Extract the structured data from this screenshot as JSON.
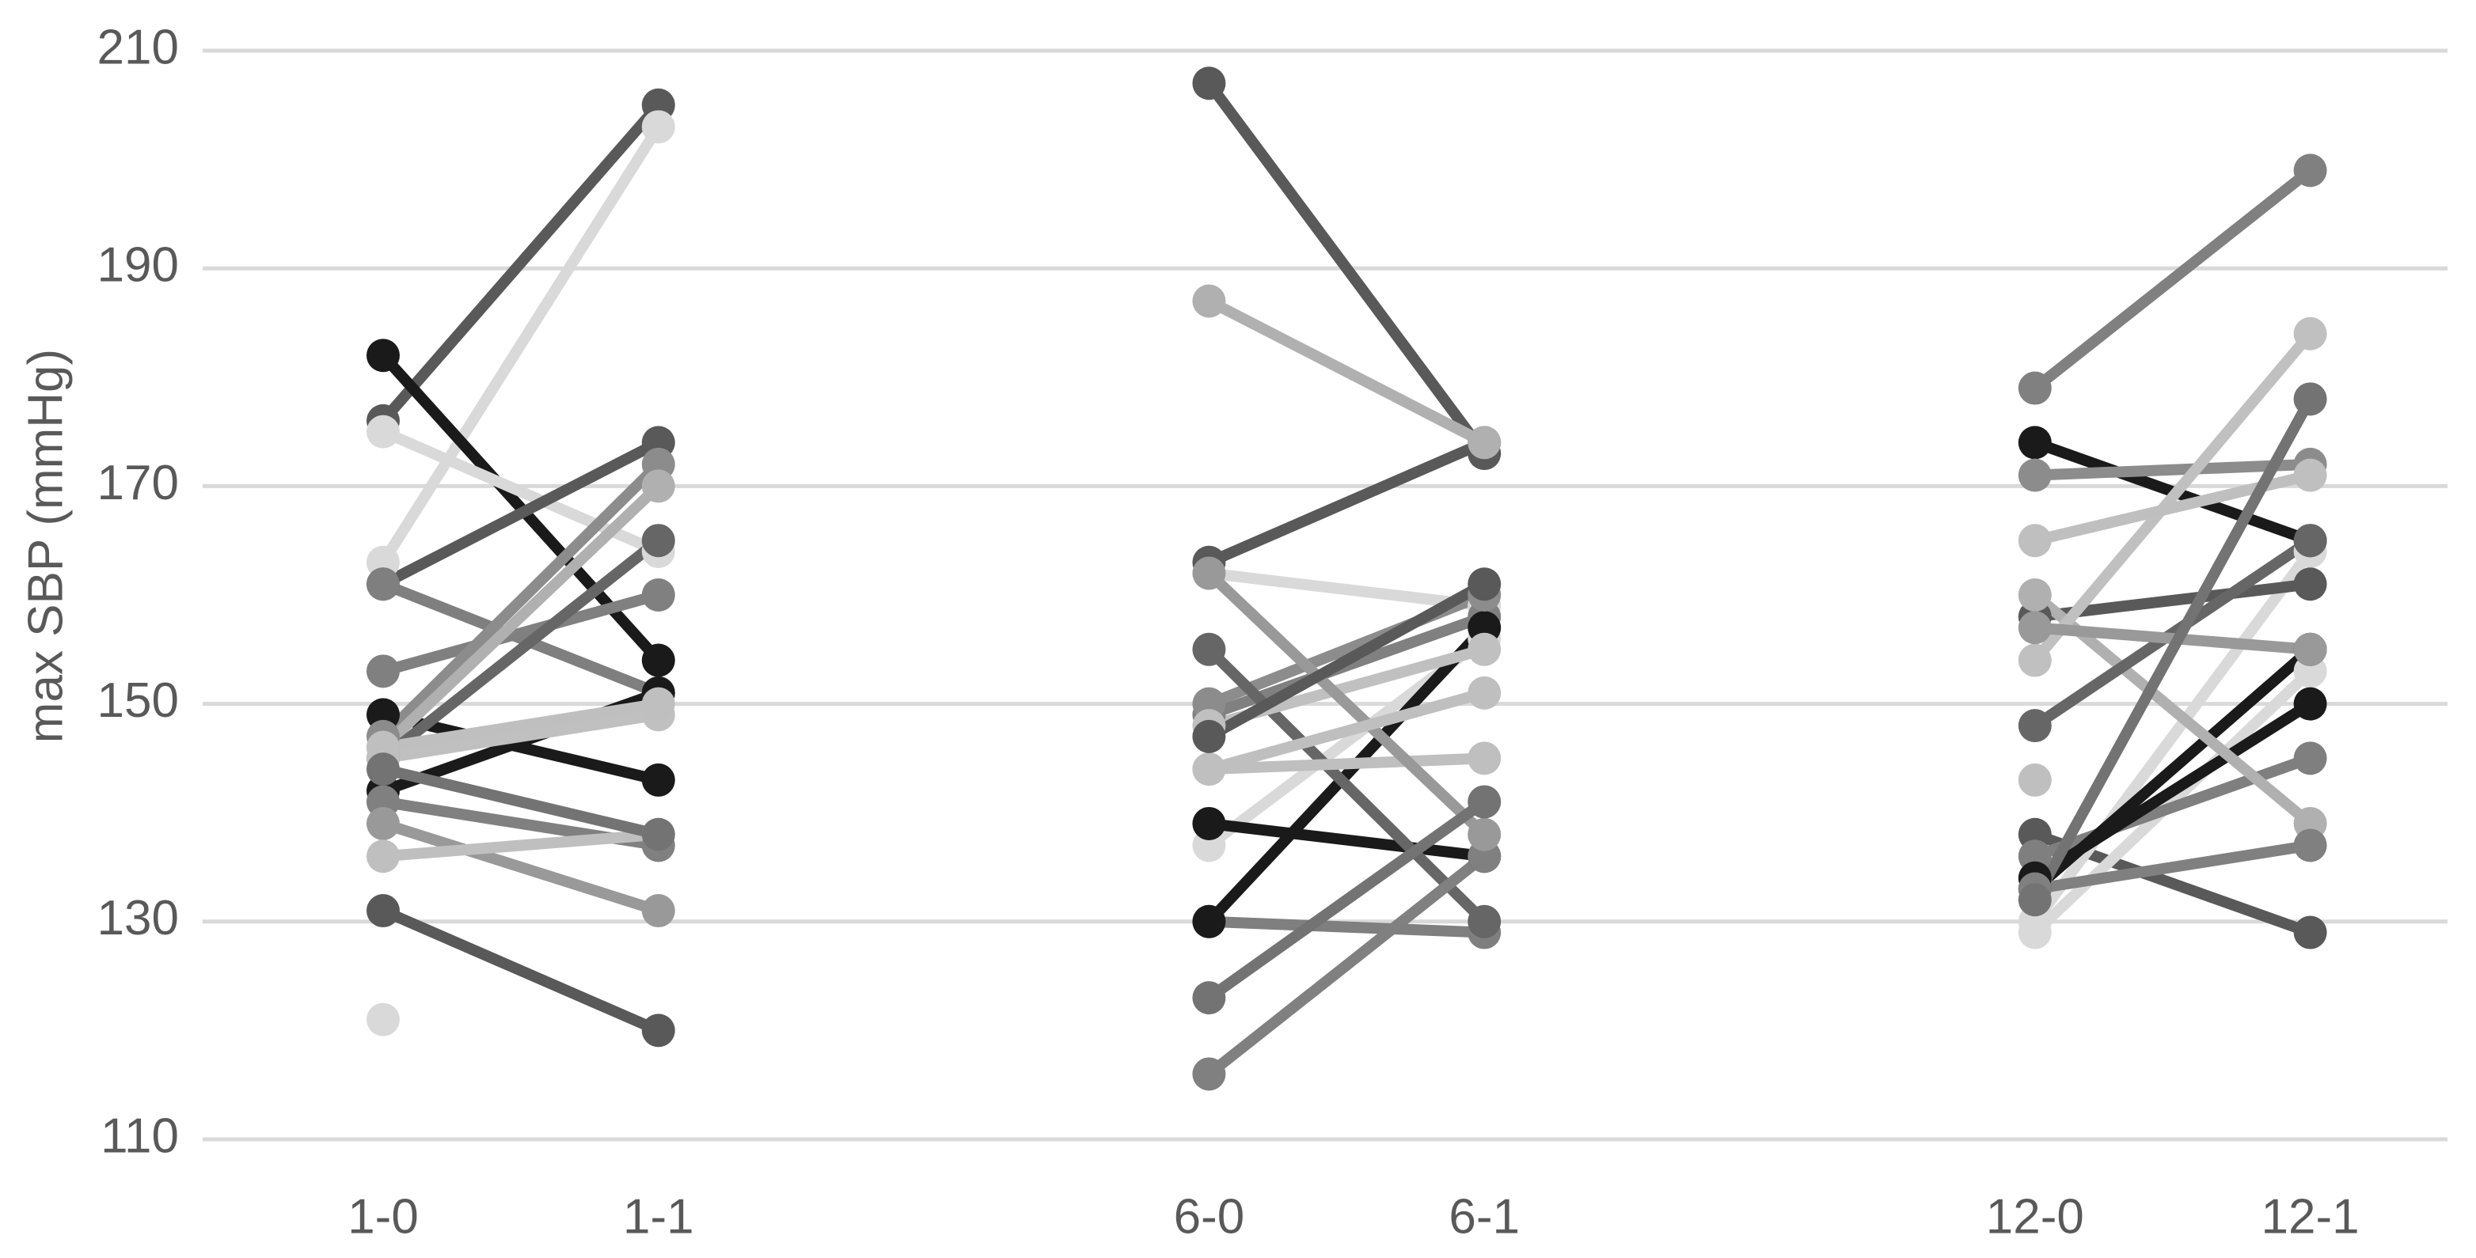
{
  "chart_data": {
    "type": "line",
    "y_label": "max SBP (mmHg)",
    "categories": [
      "1-0",
      "1-1",
      null,
      "6-0",
      "6-1",
      null,
      "12-0",
      "12-1"
    ],
    "ylim": [
      110,
      210
    ],
    "yticks": [
      110,
      130,
      150,
      170,
      190,
      210
    ],
    "grid": true,
    "series": [
      {
        "color": "#595959",
        "values": [
          176,
          205,
          null,
          207,
          173,
          null,
          138,
          129
        ]
      },
      {
        "color": "#d9d9d9",
        "values": [
          163,
          203,
          null,
          137,
          156,
          null,
          130,
          164
        ]
      },
      {
        "color": "#1a1a1a",
        "values": [
          182,
          154,
          null,
          139,
          136,
          null,
          174,
          165
        ]
      },
      {
        "color": "#d9d9d9",
        "values": [
          175,
          164,
          null,
          162,
          159,
          null,
          129,
          153
        ]
      },
      {
        "color": "#595959",
        "values": [
          161,
          174,
          null,
          163,
          174,
          null,
          158,
          161
        ]
      },
      {
        "color": "#7f7f7f",
        "values": [
          161,
          151,
          null,
          130,
          129,
          null,
          136,
          145
        ]
      },
      {
        "color": "#808080",
        "values": [
          153,
          160,
          null,
          149,
          158,
          null,
          179,
          199
        ]
      },
      {
        "color": "#1a1a1a",
        "values": [
          149,
          143,
          null,
          130,
          157,
          null,
          134,
          150
        ]
      },
      {
        "color": "#1a1a1a",
        "values": [
          142,
          151,
          null,
          null,
          null,
          null,
          133,
          155
        ]
      },
      {
        "color": "#8c8c8c",
        "values": [
          147,
          172,
          null,
          150,
          160,
          null,
          171,
          172
        ]
      },
      {
        "color": "#b0b0b0",
        "values": [
          146,
          170,
          null,
          187,
          174,
          null,
          160,
          139
        ]
      },
      {
        "color": "#666666",
        "values": [
          145,
          165,
          null,
          155,
          130,
          null,
          148,
          165
        ]
      },
      {
        "color": "#c0c0c0",
        "values": [
          145,
          149,
          null,
          148,
          155,
          null,
          154,
          184
        ]
      },
      {
        "color": "#bfbfbf",
        "values": [
          146,
          150,
          null,
          144,
          145,
          null,
          165,
          171
        ]
      },
      {
        "color": "#808080",
        "values": [
          141,
          137,
          null,
          116,
          136,
          null,
          133,
          137
        ]
      },
      {
        "color": "#999999",
        "values": [
          139,
          131,
          null,
          162,
          138,
          null,
          157,
          155
        ]
      },
      {
        "color": "#bfbfbf",
        "values": [
          136,
          138,
          null,
          144,
          151,
          null,
          143,
          null
        ]
      },
      {
        "color": "#595959",
        "values": [
          131,
          120,
          null,
          147,
          161,
          null,
          null,
          null
        ]
      },
      {
        "color": "#d9d9d9",
        "values": [
          121,
          null,
          null,
          null,
          null,
          null,
          null,
          null
        ]
      },
      {
        "color": "#737373",
        "values": [
          144,
          138,
          null,
          123,
          141,
          null,
          132,
          178
        ]
      }
    ]
  }
}
